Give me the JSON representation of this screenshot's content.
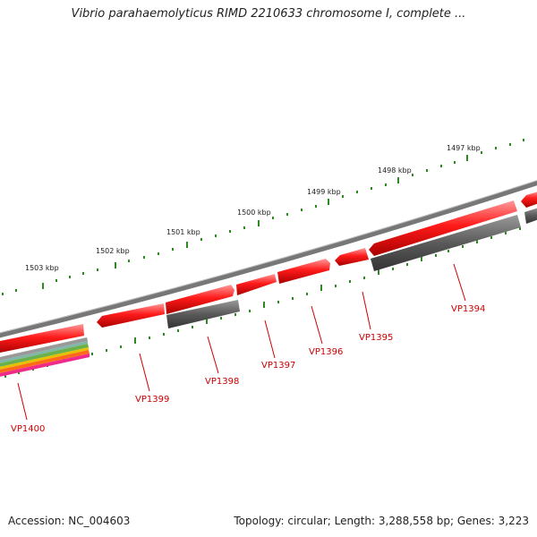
{
  "header": {
    "title": "Vibrio parahaemolyticus RIMD 2210633 chromosome I, complete ..."
  },
  "footer": {
    "accession": "Accession: NC_004603",
    "topology": "Topology: circular; Length: 3,288,558 bp; Genes: 3,223"
  },
  "scale": {
    "tick_labels": [
      "1497 kbp",
      "1498 kbp",
      "1499 kbp",
      "1500 kbp",
      "1501 kbp",
      "1502 kbp",
      "1503 kbp"
    ]
  },
  "genes": {
    "labels": [
      "VP1394",
      "VP1395",
      "VP1396",
      "VP1397",
      "VP1398",
      "VP1399",
      "VP1400"
    ]
  },
  "colors": {
    "gene_fill": "#ee0000",
    "gene_alt_fill": "#555555",
    "backbone": "#777777",
    "ticks": "#2e8b22",
    "label_color": "#cc0000"
  }
}
